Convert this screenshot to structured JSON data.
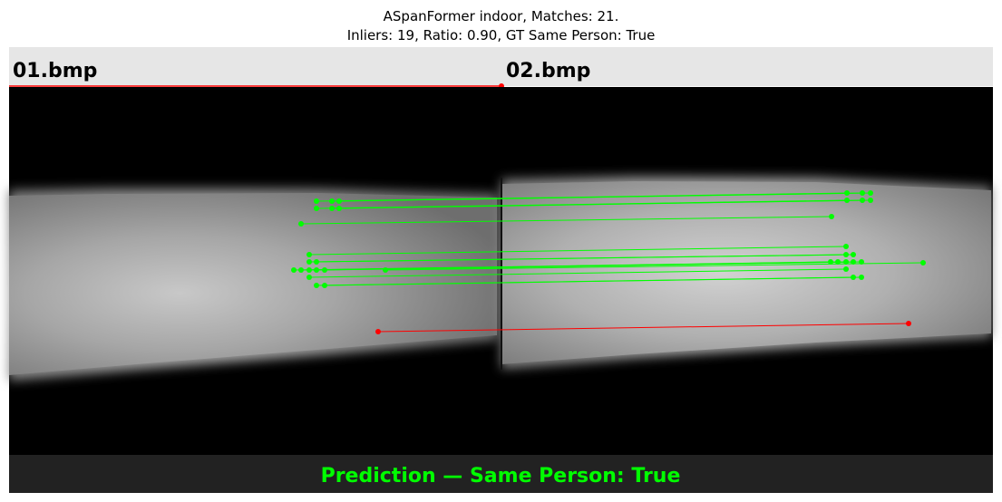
{
  "figure": {
    "title_line1": "ASpanFormer indoor, Matches: 21.",
    "title_line2": "Inliers: 19, Ratio: 0.90, GT Same Person: True"
  },
  "images": {
    "left_name": "01.bmp",
    "right_name": "02.bmp"
  },
  "prediction_text": "Prediction — Same Person: True",
  "colors": {
    "inlier": "#00ff00",
    "outlier": "#ff0000",
    "header_bg": "#e6e6e6",
    "footer_bg": "#222222"
  },
  "matches_summary": {
    "total": 21,
    "inliers": 19,
    "ratio": 0.9,
    "gt_same_person": true
  }
}
